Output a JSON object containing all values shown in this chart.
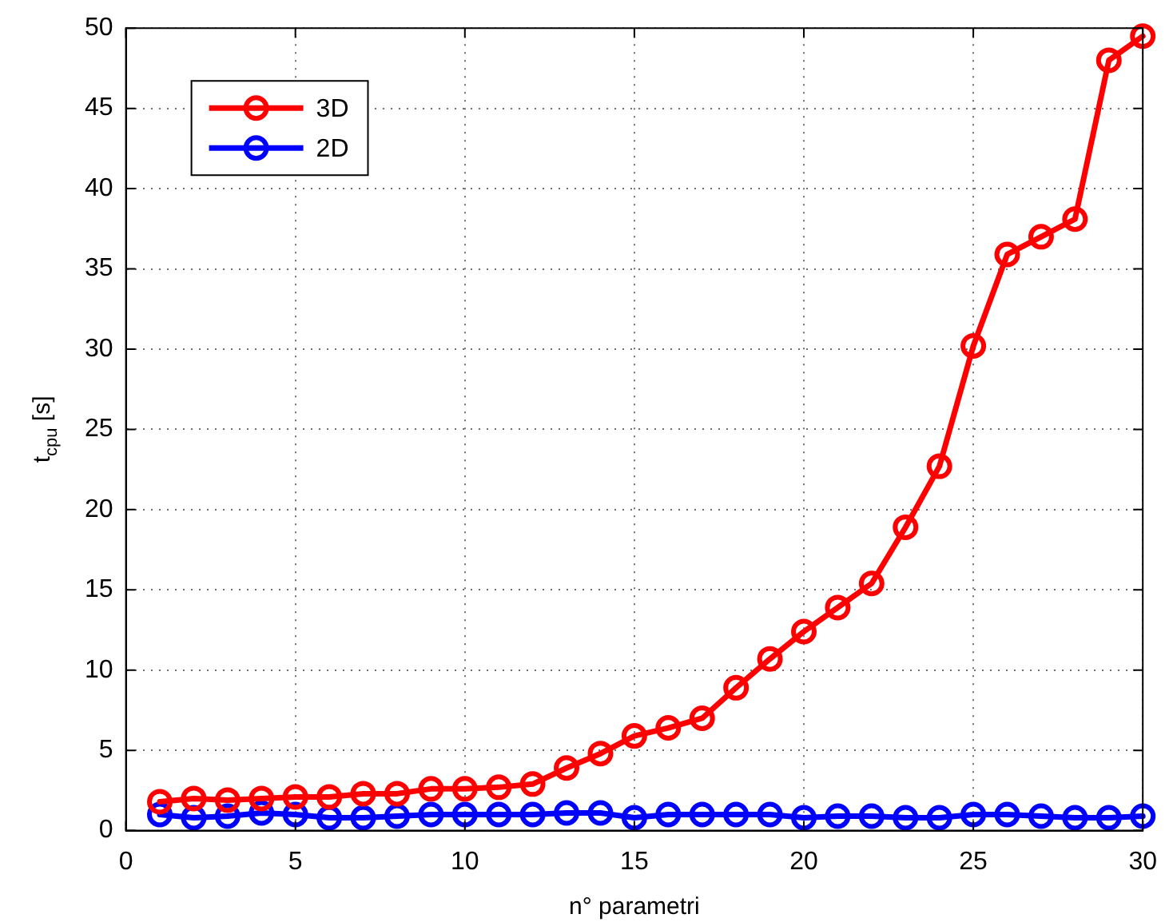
{
  "chart_data": {
    "type": "line",
    "xlabel": "n° parametri",
    "ylabel": "t$_{cpu}$ [s]",
    "x": [
      1,
      2,
      3,
      4,
      5,
      6,
      7,
      8,
      9,
      10,
      11,
      12,
      13,
      14,
      15,
      16,
      17,
      18,
      19,
      20,
      21,
      22,
      23,
      24,
      25,
      26,
      27,
      28,
      29,
      30
    ],
    "series": [
      {
        "name": "3D",
        "color": "#ff0000",
        "values": [
          1.8,
          2.0,
          1.9,
          2.0,
          2.1,
          2.1,
          2.3,
          2.3,
          2.6,
          2.6,
          2.7,
          2.9,
          3.9,
          4.8,
          5.9,
          6.4,
          7.0,
          8.9,
          10.7,
          12.4,
          13.9,
          15.4,
          18.9,
          22.7,
          30.2,
          35.9,
          37.0,
          38.1,
          48.0,
          49.5
        ]
      },
      {
        "name": "2D",
        "color": "#0000ff",
        "values": [
          1.0,
          0.8,
          0.9,
          1.1,
          1.0,
          0.8,
          0.8,
          0.9,
          1.0,
          1.0,
          1.0,
          1.0,
          1.1,
          1.1,
          0.8,
          1.0,
          1.0,
          1.0,
          1.0,
          0.8,
          0.9,
          0.9,
          0.8,
          0.8,
          1.0,
          1.0,
          0.9,
          0.8,
          0.8,
          0.9
        ]
      }
    ],
    "xlim": [
      0,
      30
    ],
    "ylim": [
      0,
      50
    ],
    "xticks": [
      0,
      5,
      10,
      15,
      20,
      25,
      30
    ],
    "yticks": [
      0,
      5,
      10,
      15,
      20,
      25,
      30,
      35,
      40,
      45,
      50
    ],
    "grid": true,
    "legend": "top left",
    "marker": "circle",
    "line_style": "solid"
  }
}
